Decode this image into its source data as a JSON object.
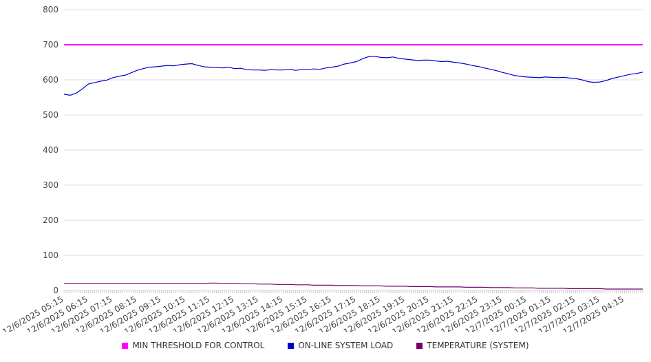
{
  "chart_data": {
    "type": "line",
    "title": "",
    "xlabel": "",
    "ylabel": "",
    "ylim": [
      0,
      800
    ],
    "ytick_step": 100,
    "grid": "horizontal",
    "legend_position": "bottom",
    "points_per_label": 4,
    "x_labels": [
      "12/6/2025 05:15",
      "12/6/2025 06:15",
      "12/6/2025 07:15",
      "12/6/2025 08:15",
      "12/6/2025 09:15",
      "12/6/2025 10:15",
      "12/6/2025 11:15",
      "12/6/2025 12:15",
      "12/6/2025 13:15",
      "12/6/2025 14:15",
      "12/6/2025 15:15",
      "12/6/2025 16:15",
      "12/6/2025 17:15",
      "12/6/2025 18:15",
      "12/6/2025 19:15",
      "12/6/2025 20:15",
      "12/6/2025 21:15",
      "12/6/2025 22:15",
      "12/6/2025 23:15",
      "12/7/2025 00:15",
      "12/7/2025 01:15",
      "12/7/2025 02:15",
      "12/7/2025 03:15",
      "12/7/2025 04:15"
    ],
    "series": [
      {
        "name": "MIN THRESHOLD FOR CONTROL",
        "color": "#ff00ff",
        "constant": 700
      },
      {
        "name": "ON-LINE SYSTEM LOAD",
        "color": "#0000cc",
        "values": [
          559,
          556,
          562,
          574,
          588,
          592,
          596,
          599,
          606,
          610,
          613,
          620,
          627,
          632,
          636,
          637,
          639,
          641,
          640,
          643,
          645,
          646,
          641,
          637,
          636,
          635,
          634,
          636,
          632,
          633,
          629,
          628,
          628,
          627,
          629,
          628,
          628,
          630,
          627,
          629,
          629,
          631,
          630,
          634,
          636,
          639,
          645,
          648,
          652,
          660,
          666,
          667,
          664,
          663,
          665,
          661,
          659,
          657,
          655,
          656,
          656,
          654,
          652,
          653,
          650,
          648,
          645,
          641,
          638,
          634,
          630,
          626,
          621,
          617,
          612,
          610,
          608,
          607,
          606,
          608,
          607,
          606,
          607,
          605,
          604,
          600,
          595,
          593,
          594,
          598,
          604,
          608,
          612,
          616,
          618,
          622
        ]
      },
      {
        "name": "TEMPERATURE (SYSTEM)",
        "color": "#73006e",
        "values": [
          20,
          20,
          20,
          20,
          20,
          20,
          20,
          20,
          20,
          20,
          20,
          20,
          20,
          20,
          20,
          20,
          20,
          20,
          20,
          20,
          20,
          20,
          20,
          20,
          21,
          21,
          20,
          20,
          20,
          19,
          19,
          19,
          18,
          18,
          18,
          17,
          17,
          17,
          16,
          16,
          16,
          15,
          15,
          15,
          15,
          14,
          14,
          14,
          14,
          13,
          13,
          13,
          13,
          12,
          12,
          12,
          12,
          11,
          11,
          11,
          11,
          10,
          10,
          10,
          10,
          10,
          9,
          9,
          9,
          9,
          8,
          8,
          8,
          8,
          7,
          7,
          7,
          7,
          6,
          6,
          6,
          6,
          6,
          5,
          5,
          5,
          5,
          5,
          5,
          4,
          4,
          4,
          4,
          4,
          4,
          4
        ]
      }
    ]
  }
}
